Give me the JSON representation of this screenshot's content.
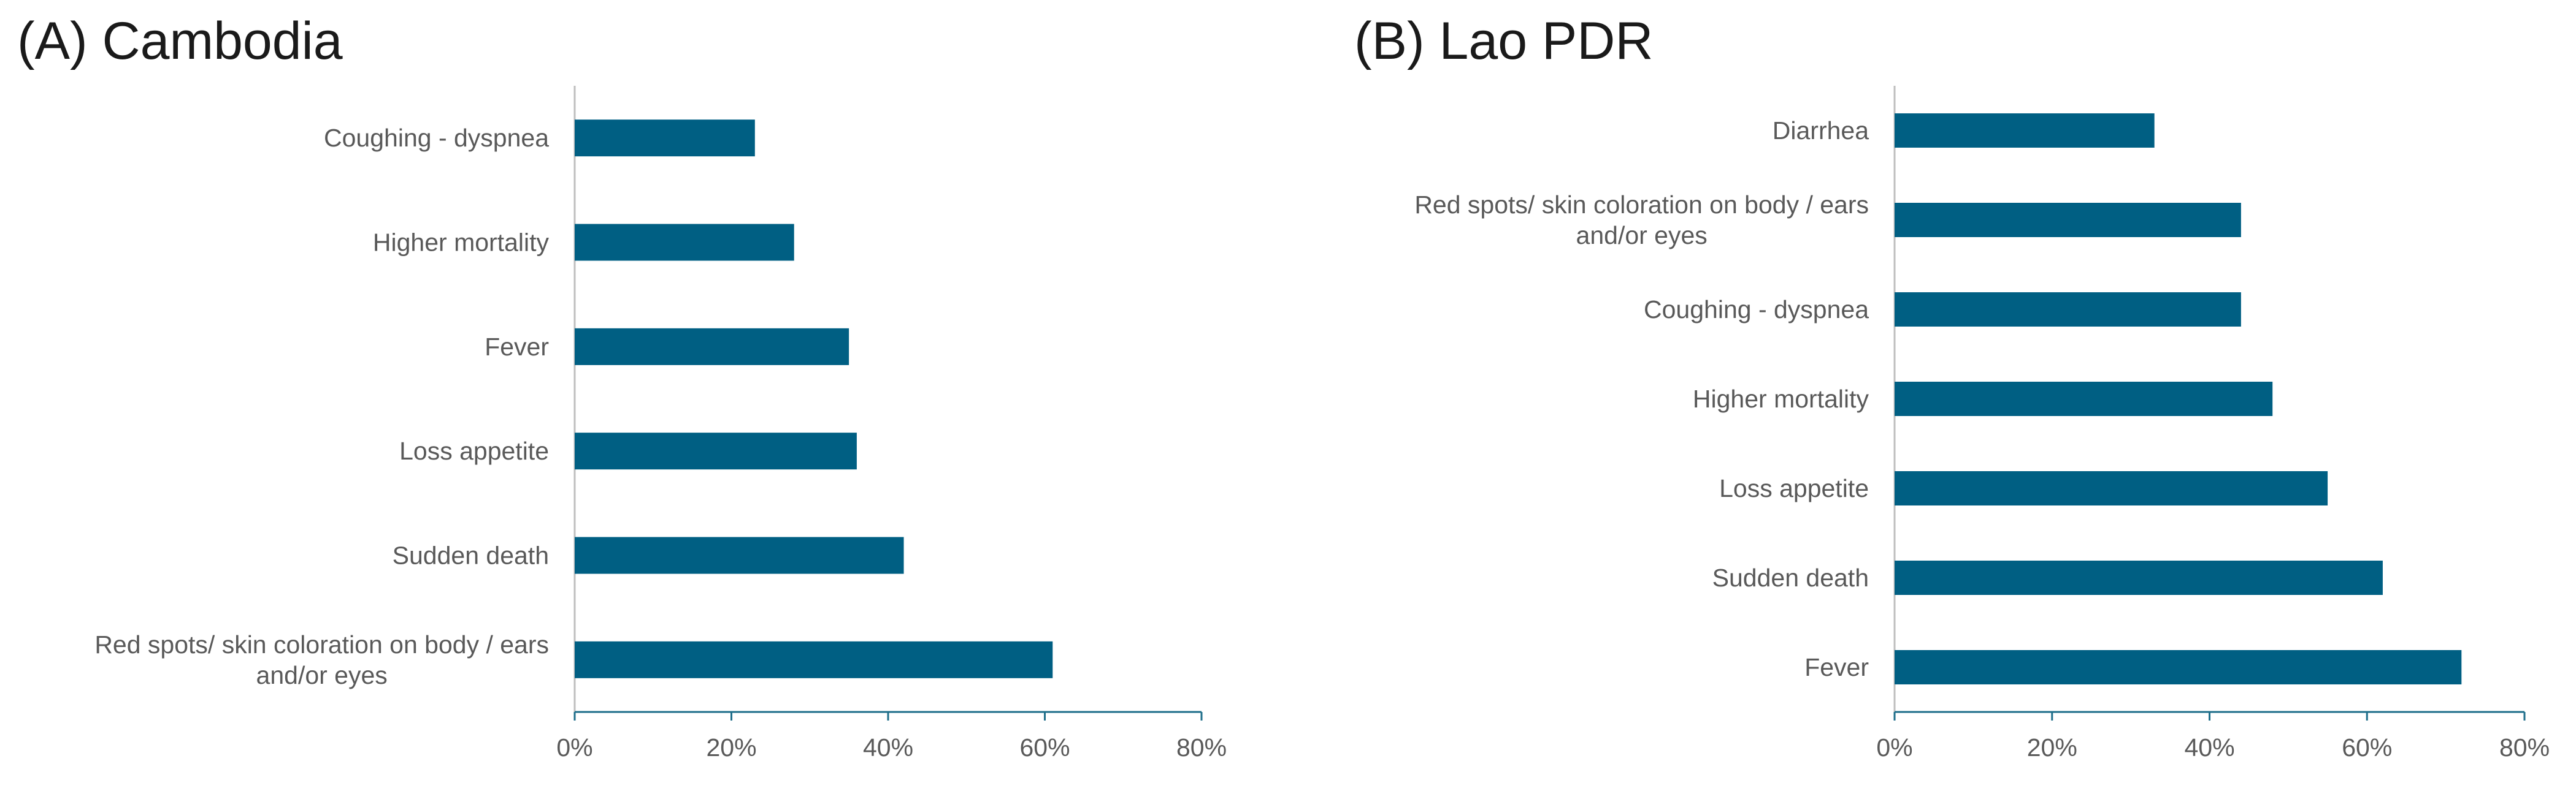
{
  "chart_data": [
    {
      "type": "bar",
      "orientation": "horizontal",
      "title": "(A) Cambodia",
      "categories": [
        "Coughing - dyspnea",
        "Higher mortality",
        "Fever",
        "Loss appetite",
        "Sudden death",
        "Red spots/ skin coloration on body / ears and/or eyes"
      ],
      "label_lines": [
        [
          "Coughing - dyspnea"
        ],
        [
          "Higher mortality"
        ],
        [
          "Fever"
        ],
        [
          "Loss appetite"
        ],
        [
          "Sudden death"
        ],
        [
          "Red spots/ skin coloration on body / ears",
          "and/or eyes"
        ]
      ],
      "values": [
        23,
        28,
        35,
        36,
        42,
        61
      ],
      "xlim": [
        0,
        80
      ],
      "xticks": [
        0,
        20,
        40,
        60,
        80
      ],
      "tick_labels": [
        "0%",
        "20%",
        "40%",
        "60%",
        "80%"
      ],
      "bar_color": "#005f83",
      "grid": false
    },
    {
      "type": "bar",
      "orientation": "horizontal",
      "title": "(B) Lao PDR",
      "categories": [
        "Diarrhea",
        "Red spots/ skin coloration on body / ears and/or eyes",
        "Coughing - dyspnea",
        "Higher mortality",
        "Loss appetite",
        "Sudden death",
        "Fever"
      ],
      "label_lines": [
        [
          "Diarrhea"
        ],
        [
          "Red spots/ skin coloration on body / ears",
          "and/or eyes"
        ],
        [
          "Coughing - dyspnea"
        ],
        [
          "Higher mortality"
        ],
        [
          "Loss appetite"
        ],
        [
          "Sudden death"
        ],
        [
          "Fever"
        ]
      ],
      "values": [
        33,
        44,
        44,
        48,
        55,
        62,
        72
      ],
      "xlim": [
        0,
        80
      ],
      "xticks": [
        0,
        20,
        40,
        60,
        80
      ],
      "tick_labels": [
        "0%",
        "20%",
        "40%",
        "60%",
        "80%"
      ],
      "bar_color": "#005f83",
      "grid": false
    }
  ]
}
